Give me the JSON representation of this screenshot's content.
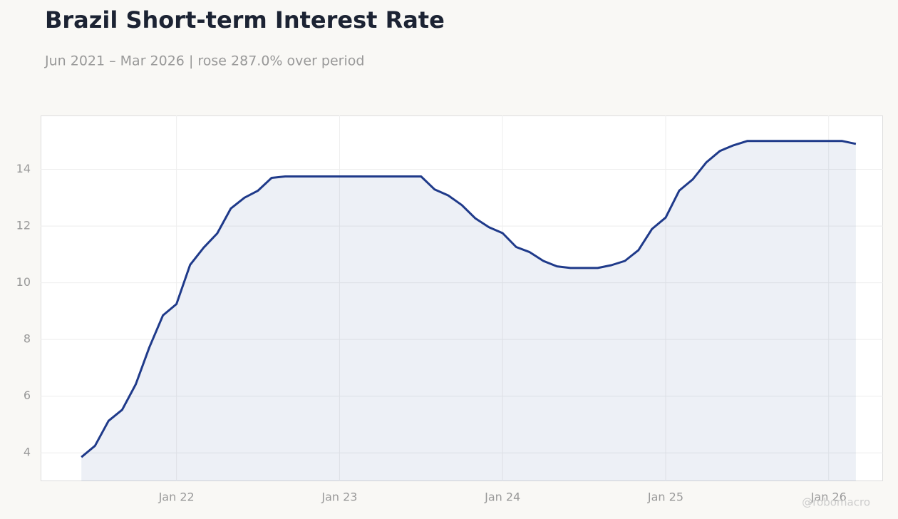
{
  "chart_data": {
    "type": "line",
    "title": "Brazil Short-term Interest Rate",
    "subtitle": "Jun 2021 – Mar 2026 | rose 287.0% over period",
    "watermark": "@robomacro",
    "x": [
      "2021-06",
      "2021-07",
      "2021-08",
      "2021-09",
      "2021-10",
      "2021-11",
      "2021-12",
      "2022-01",
      "2022-02",
      "2022-03",
      "2022-04",
      "2022-05",
      "2022-06",
      "2022-07",
      "2022-08",
      "2022-09",
      "2022-10",
      "2022-11",
      "2022-12",
      "2023-01",
      "2023-02",
      "2023-03",
      "2023-04",
      "2023-05",
      "2023-06",
      "2023-07",
      "2023-08",
      "2023-09",
      "2023-10",
      "2023-11",
      "2023-12",
      "2024-01",
      "2024-02",
      "2024-03",
      "2024-04",
      "2024-05",
      "2024-06",
      "2024-07",
      "2024-08",
      "2024-09",
      "2024-10",
      "2024-11",
      "2024-12",
      "2025-01",
      "2025-02",
      "2025-03",
      "2025-04",
      "2025-05",
      "2025-06",
      "2025-07",
      "2025-08",
      "2025-09",
      "2025-10",
      "2025-11",
      "2025-12",
      "2026-01",
      "2026-02",
      "2026-03"
    ],
    "series": [
      {
        "name": "Short-term Interest Rate",
        "color": "#1f3a8a",
        "values": [
          3.85,
          4.25,
          5.13,
          5.52,
          6.42,
          7.72,
          8.85,
          9.25,
          10.63,
          11.24,
          11.74,
          12.62,
          13.0,
          13.25,
          13.7,
          13.75,
          13.75,
          13.75,
          13.75,
          13.75,
          13.75,
          13.75,
          13.75,
          13.75,
          13.75,
          13.75,
          13.29,
          13.08,
          12.74,
          12.27,
          11.96,
          11.75,
          11.26,
          11.08,
          10.77,
          10.58,
          10.52,
          10.52,
          10.52,
          10.62,
          10.77,
          11.15,
          11.9,
          12.3,
          13.25,
          13.65,
          14.25,
          14.65,
          14.85,
          15.0,
          15.0,
          15.0,
          15.0,
          15.0,
          15.0,
          15.0,
          15.0,
          14.9
        ]
      }
    ],
    "xlim": [
      "2021-03",
      "2026-05"
    ],
    "xticks": [
      {
        "value": "2022-01",
        "label": "Jan 22"
      },
      {
        "value": "2023-01",
        "label": "Jan 23"
      },
      {
        "value": "2024-01",
        "label": "Jan 24"
      },
      {
        "value": "2025-01",
        "label": "Jan 25"
      },
      {
        "value": "2026-01",
        "label": "Jan 26"
      }
    ],
    "ylim": [
      3,
      15.9
    ],
    "yticks": [
      4,
      6,
      8,
      10,
      12,
      14
    ],
    "grid": true
  }
}
